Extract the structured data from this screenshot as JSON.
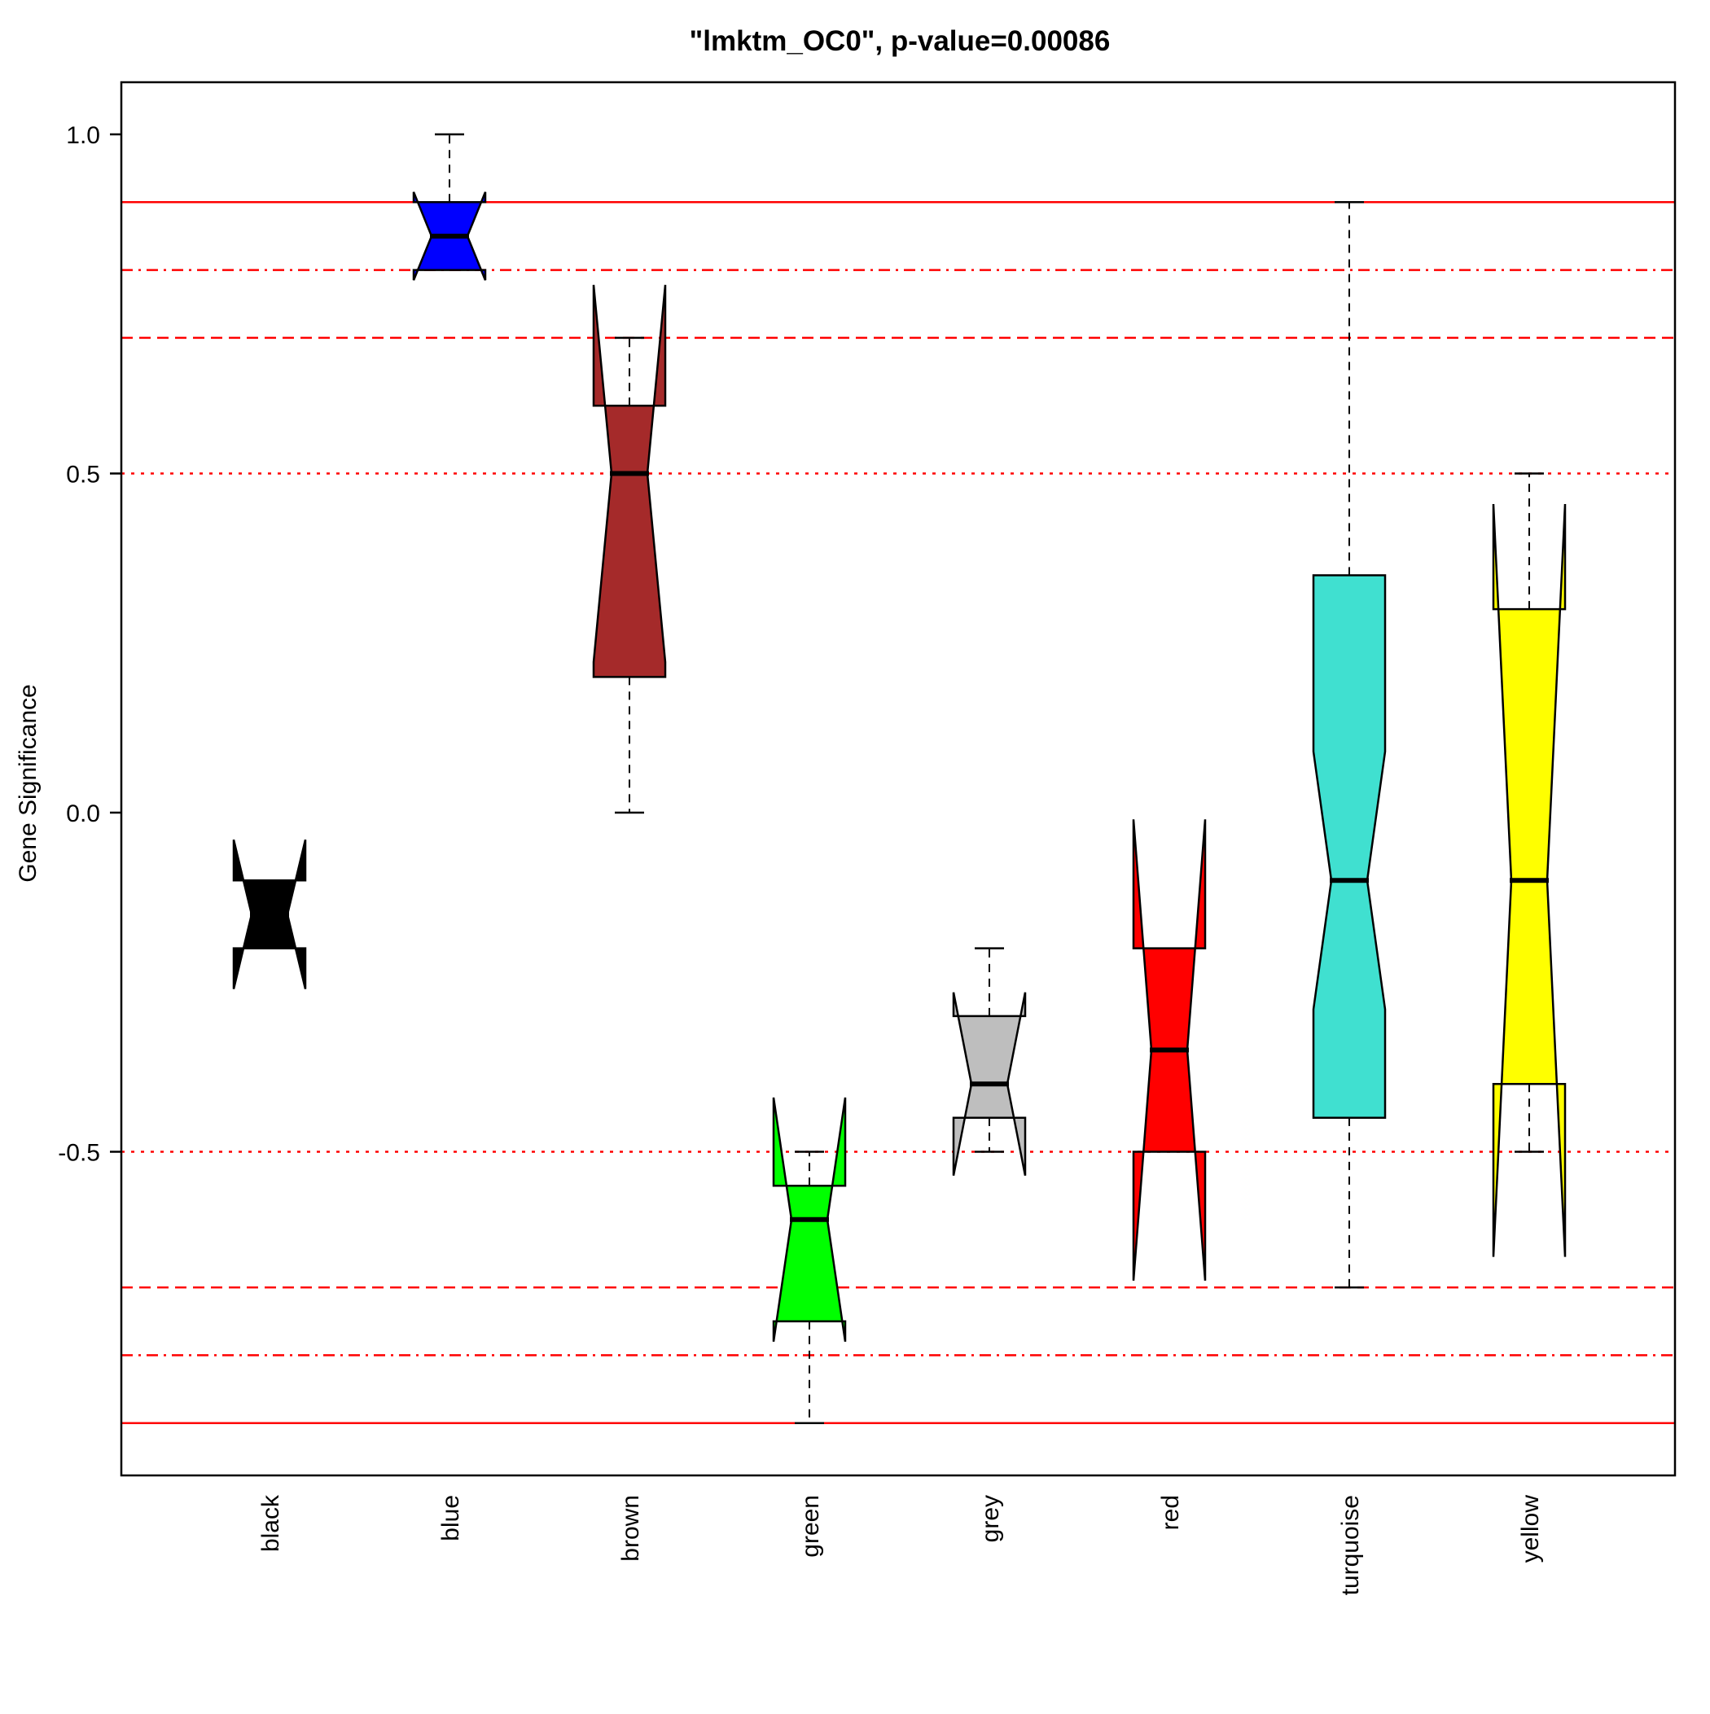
{
  "chart_data": {
    "type": "box",
    "title": "\"lmktm_OC0\", p-value=0.00086",
    "xlabel": "",
    "ylabel": "Gene Significance",
    "ylim": [
      -0.975,
      1.08
    ],
    "y_ticks": [
      {
        "value": 1.0,
        "label": "1.0"
      },
      {
        "value": 0.5,
        "label": "0.5"
      },
      {
        "value": 0.0,
        "label": "0.0"
      },
      {
        "value": -0.5,
        "label": "-0.5"
      }
    ],
    "categories": [
      "black",
      "blue",
      "brown",
      "green",
      "grey",
      "red",
      "turquoise",
      "yellow"
    ],
    "boxes": [
      {
        "name": "black",
        "color": "#000000",
        "whisker_low": -0.2,
        "q1": -0.2,
        "median": -0.15,
        "q3": -0.1,
        "whisker_high": -0.1,
        "notch_low": -0.26,
        "notch_high": -0.04
      },
      {
        "name": "blue",
        "color": "#0000FF",
        "whisker_low": 0.8,
        "q1": 0.8,
        "median": 0.85,
        "q3": 0.9,
        "whisker_high": 1.0,
        "notch_low": 0.785,
        "notch_high": 0.915
      },
      {
        "name": "brown",
        "color": "#A52A2A",
        "whisker_low": 0.0,
        "q1": 0.2,
        "median": 0.5,
        "q3": 0.6,
        "whisker_high": 0.7,
        "notch_low": 0.222,
        "notch_high": 0.778
      },
      {
        "name": "green",
        "color": "#00FF00",
        "whisker_low": -0.9,
        "q1": -0.75,
        "median": -0.6,
        "q3": -0.55,
        "whisker_high": -0.5,
        "notch_low": -0.78,
        "notch_high": -0.42
      },
      {
        "name": "grey",
        "color": "#BEBEBE",
        "whisker_low": -0.5,
        "q1": -0.45,
        "median": -0.4,
        "q3": -0.3,
        "whisker_high": -0.2,
        "notch_low": -0.535,
        "notch_high": -0.265
      },
      {
        "name": "red",
        "color": "#FF0000",
        "whisker_low": -0.5,
        "q1": -0.5,
        "median": -0.35,
        "q3": -0.2,
        "whisker_high": -0.2,
        "notch_low": -0.69,
        "notch_high": -0.01
      },
      {
        "name": "turquoise",
        "color": "#40E0D0",
        "whisker_low": -0.7,
        "q1": -0.45,
        "median": -0.1,
        "q3": 0.35,
        "whisker_high": 0.9,
        "notch_low": -0.29,
        "notch_high": 0.09
      },
      {
        "name": "yellow",
        "color": "#FFFF00",
        "whisker_low": -0.5,
        "q1": -0.4,
        "median": -0.1,
        "q3": 0.3,
        "whisker_high": 0.5,
        "notch_low": -0.655,
        "notch_high": 0.455
      }
    ],
    "reference_lines": [
      {
        "value": 0.9,
        "style": "solid",
        "color": "#FF0000"
      },
      {
        "value": 0.8,
        "style": "dashdot",
        "color": "#FF0000"
      },
      {
        "value": 0.7,
        "style": "dashed",
        "color": "#FF0000"
      },
      {
        "value": 0.5,
        "style": "dotted",
        "color": "#FF0000"
      },
      {
        "value": -0.5,
        "style": "dotted",
        "color": "#FF0000"
      },
      {
        "value": -0.7,
        "style": "dashed",
        "color": "#FF0000"
      },
      {
        "value": -0.8,
        "style": "dashdot",
        "color": "#FF0000"
      },
      {
        "value": -0.9,
        "style": "solid",
        "color": "#FF0000"
      }
    ],
    "grid": false,
    "legend": "none"
  }
}
